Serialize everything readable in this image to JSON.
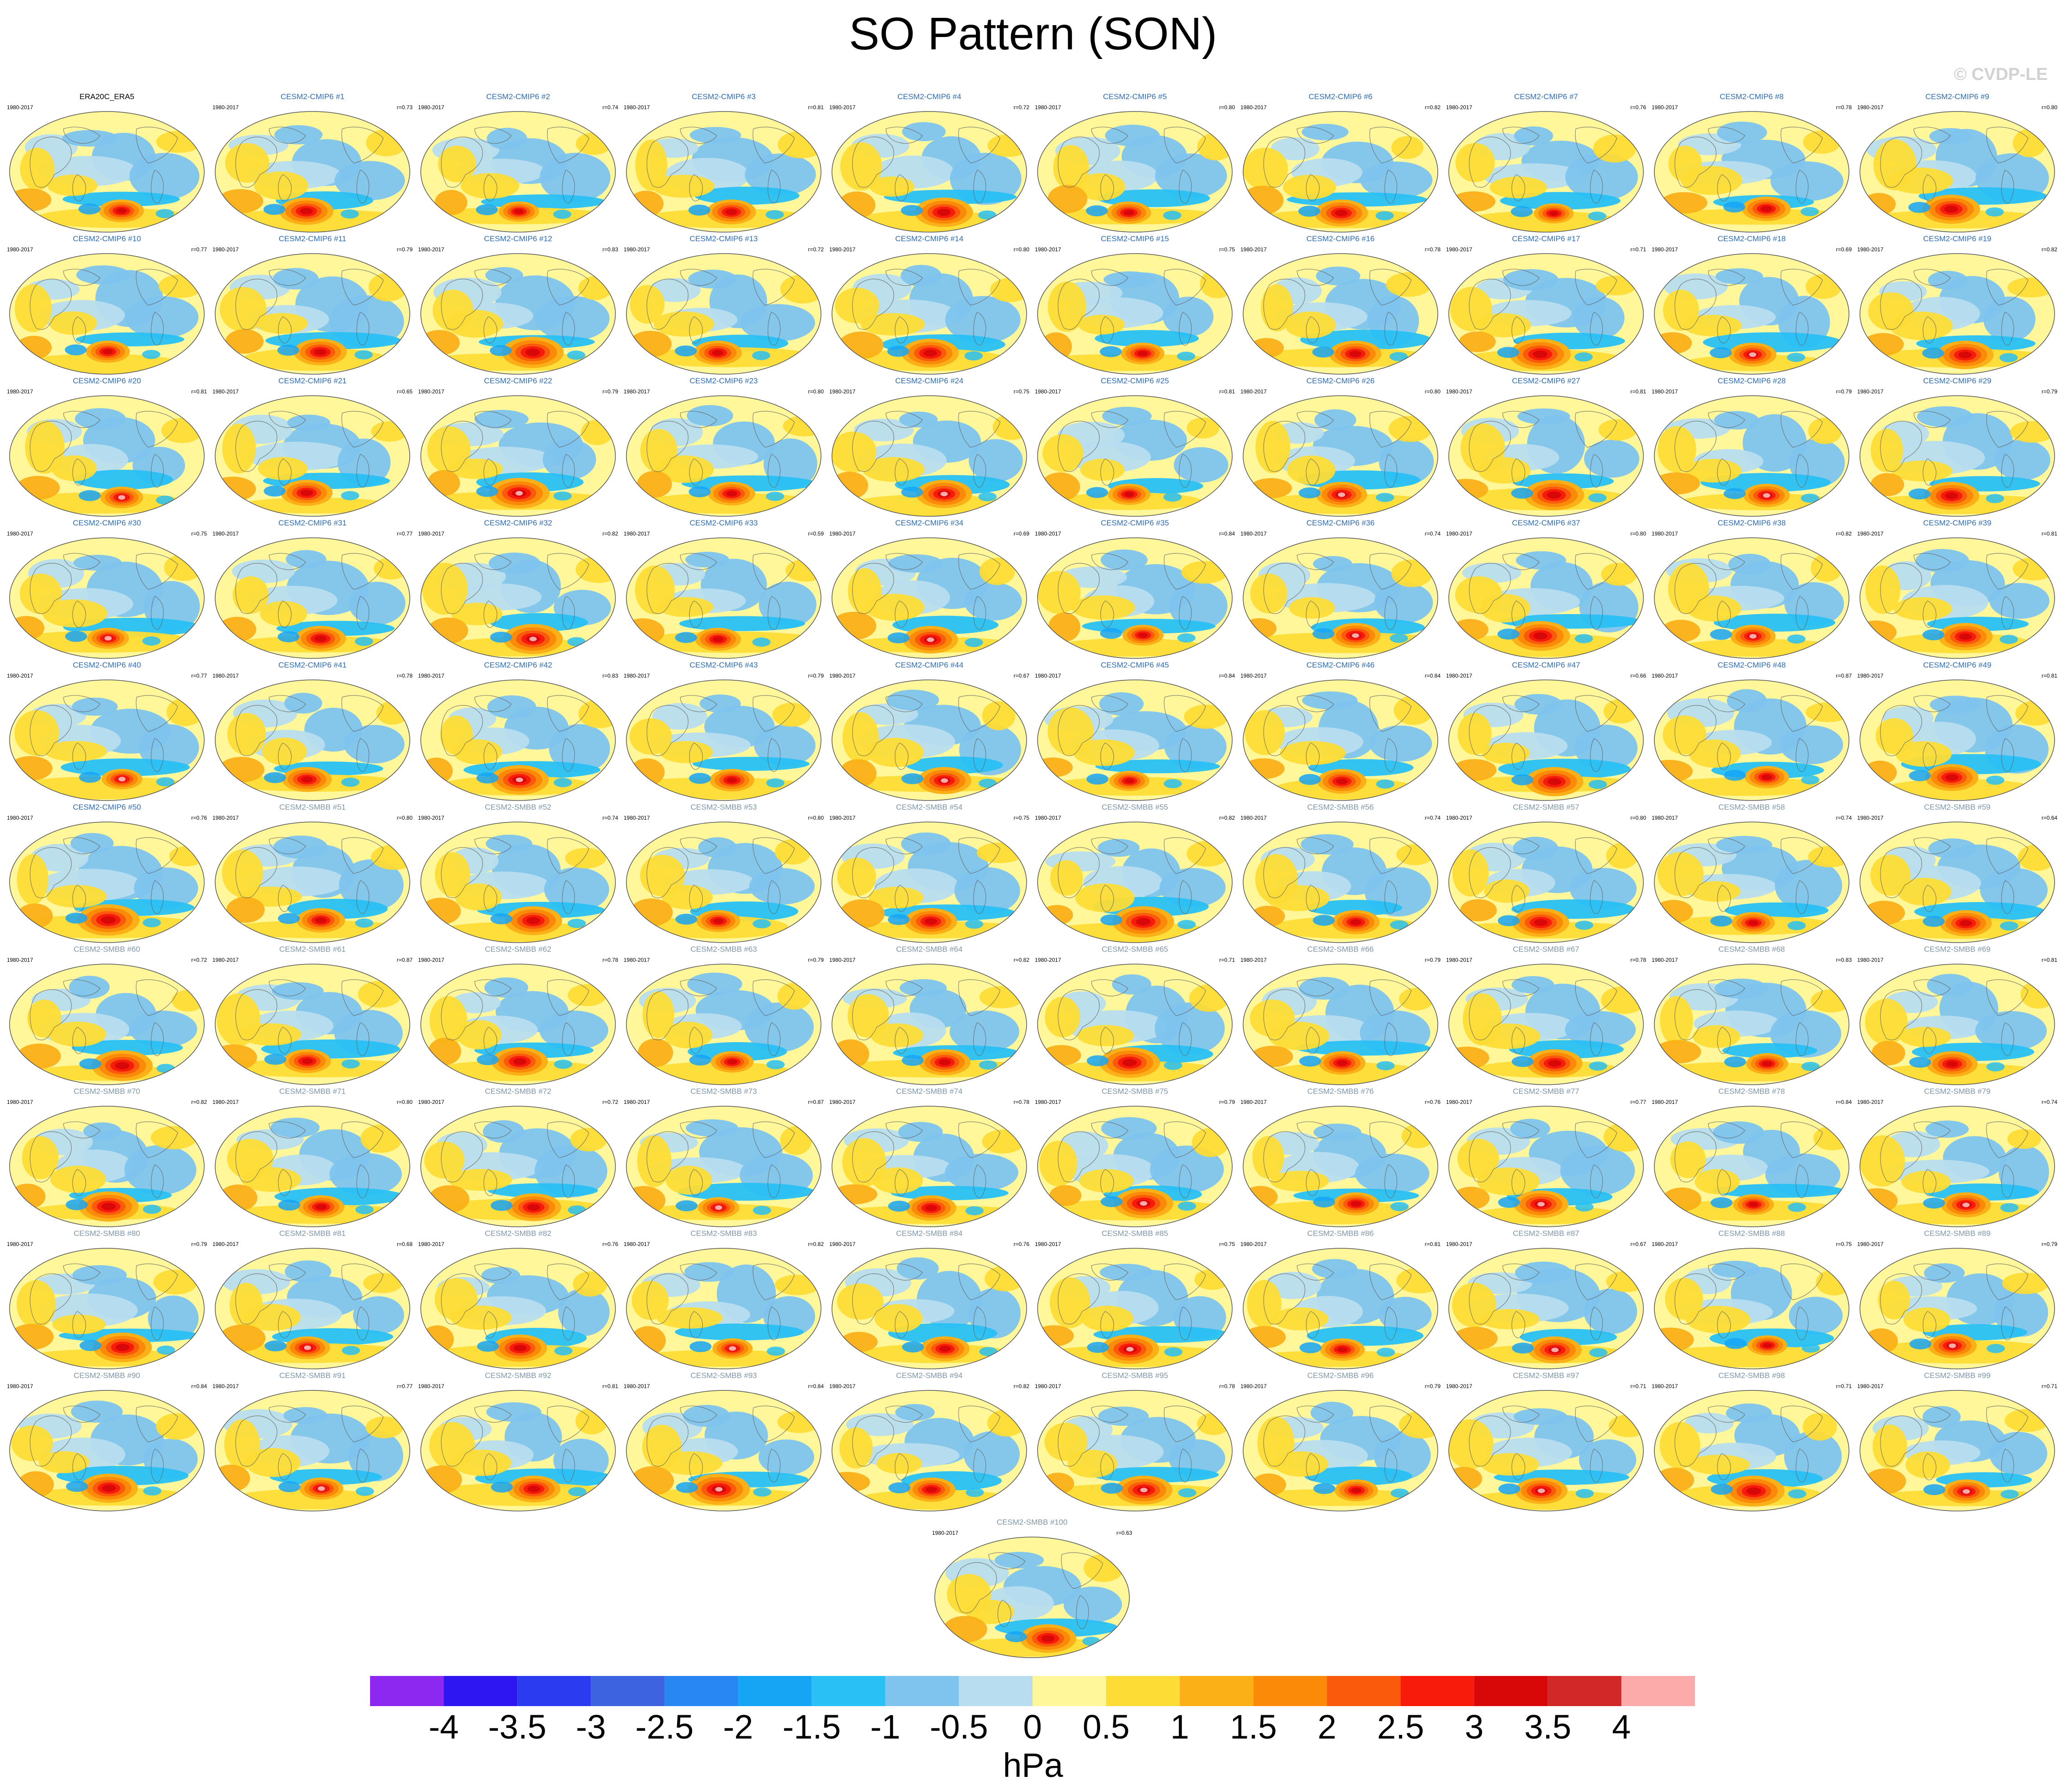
{
  "title": "SO Pattern (SON)",
  "watermark": "© CVDP-LE",
  "units": "hPa",
  "colorbar": {
    "labels": [
      "-4",
      "-3.5",
      "-3",
      "-2.5",
      "-2",
      "-1.5",
      "-1",
      "-0.5",
      "0",
      "0.5",
      "1",
      "1.5",
      "2",
      "2.5",
      "3",
      "3.5",
      "4"
    ],
    "colors": [
      "#8c28f0",
      "#2e16f2",
      "#2b3cf0",
      "#3d63e0",
      "#2887f2",
      "#16a4f5",
      "#28c0f5",
      "#7ec4ee",
      "#b8ddf0",
      "#fff79a",
      "#fddc35",
      "#fbb018",
      "#fa8a08",
      "#fa5a0c",
      "#f81a0a",
      "#d80808",
      "#d22828",
      "#fcaaaa"
    ]
  },
  "chart_data": {
    "type": "heatmap",
    "description_units": "sea level pressure anomaly (hPa)",
    "color_scale": {
      "min": -4,
      "max": 4,
      "step": 0.5,
      "units": "hPa"
    },
    "years": "1980-2017",
    "panels": [
      {
        "title": "ERA20C_ERA5",
        "years": "1980-2017",
        "r": "",
        "source": "obs"
      },
      {
        "title": "CESM2-CMIP6 #1",
        "years": "1980-2017",
        "r": "r=0.73",
        "source": "cmip6"
      },
      {
        "title": "CESM2-CMIP6 #2",
        "years": "1980-2017",
        "r": "r=0.74",
        "source": "cmip6"
      },
      {
        "title": "CESM2-CMIP6 #3",
        "years": "1980-2017",
        "r": "r=0.81",
        "source": "cmip6"
      },
      {
        "title": "CESM2-CMIP6 #4",
        "years": "1980-2017",
        "r": "r=0.72",
        "source": "cmip6"
      },
      {
        "title": "CESM2-CMIP6 #5",
        "years": "1980-2017",
        "r": "r=0.80",
        "source": "cmip6"
      },
      {
        "title": "CESM2-CMIP6 #6",
        "years": "1980-2017",
        "r": "r=0.82",
        "source": "cmip6"
      },
      {
        "title": "CESM2-CMIP6 #7",
        "years": "1980-2017",
        "r": "r=0.76",
        "source": "cmip6"
      },
      {
        "title": "CESM2-CMIP6 #8",
        "years": "1980-2017",
        "r": "r=0.78",
        "source": "cmip6"
      },
      {
        "title": "CESM2-CMIP6 #9",
        "years": "1980-2017",
        "r": "r=0.80",
        "source": "cmip6"
      },
      {
        "title": "CESM2-CMIP6 #10",
        "years": "1980-2017",
        "r": "r=0.77",
        "source": "cmip6"
      },
      {
        "title": "CESM2-CMIP6 #11",
        "years": "1980-2017",
        "r": "r=0.79",
        "source": "cmip6"
      },
      {
        "title": "CESM2-CMIP6 #12",
        "years": "1980-2017",
        "r": "r=0.83",
        "source": "cmip6"
      },
      {
        "title": "CESM2-CMIP6 #13",
        "years": "1980-2017",
        "r": "r=0.72",
        "source": "cmip6"
      },
      {
        "title": "CESM2-CMIP6 #14",
        "years": "1980-2017",
        "r": "r=0.80",
        "source": "cmip6"
      },
      {
        "title": "CESM2-CMIP6 #15",
        "years": "1980-2017",
        "r": "r=0.75",
        "source": "cmip6"
      },
      {
        "title": "CESM2-CMIP6 #16",
        "years": "1980-2017",
        "r": "r=0.78",
        "source": "cmip6"
      },
      {
        "title": "CESM2-CMIP6 #17",
        "years": "1980-2017",
        "r": "r=0.71",
        "source": "cmip6"
      },
      {
        "title": "CESM2-CMIP6 #18",
        "years": "1980-2017",
        "r": "r=0.69",
        "source": "cmip6"
      },
      {
        "title": "CESM2-CMIP6 #19",
        "years": "1980-2017",
        "r": "r=0.82",
        "source": "cmip6"
      },
      {
        "title": "CESM2-CMIP6 #20",
        "years": "1980-2017",
        "r": "r=0.81",
        "source": "cmip6"
      },
      {
        "title": "CESM2-CMIP6 #21",
        "years": "1980-2017",
        "r": "r=0.65",
        "source": "cmip6"
      },
      {
        "title": "CESM2-CMIP6 #22",
        "years": "1980-2017",
        "r": "r=0.79",
        "source": "cmip6"
      },
      {
        "title": "CESM2-CMIP6 #23",
        "years": "1980-2017",
        "r": "r=0.80",
        "source": "cmip6"
      },
      {
        "title": "CESM2-CMIP6 #24",
        "years": "1980-2017",
        "r": "r=0.75",
        "source": "cmip6"
      },
      {
        "title": "CESM2-CMIP6 #25",
        "years": "1980-2017",
        "r": "r=0.81",
        "source": "cmip6"
      },
      {
        "title": "CESM2-CMIP6 #26",
        "years": "1980-2017",
        "r": "r=0.80",
        "source": "cmip6"
      },
      {
        "title": "CESM2-CMIP6 #27",
        "years": "1980-2017",
        "r": "r=0.81",
        "source": "cmip6"
      },
      {
        "title": "CESM2-CMIP6 #28",
        "years": "1980-2017",
        "r": "r=0.79",
        "source": "cmip6"
      },
      {
        "title": "CESM2-CMIP6 #29",
        "years": "1980-2017",
        "r": "r=0.79",
        "source": "cmip6"
      },
      {
        "title": "CESM2-CMIP6 #30",
        "years": "1980-2017",
        "r": "r=0.75",
        "source": "cmip6"
      },
      {
        "title": "CESM2-CMIP6 #31",
        "years": "1980-2017",
        "r": "r=0.77",
        "source": "cmip6"
      },
      {
        "title": "CESM2-CMIP6 #32",
        "years": "1980-2017",
        "r": "r=0.82",
        "source": "cmip6"
      },
      {
        "title": "CESM2-CMIP6 #33",
        "years": "1980-2017",
        "r": "r=0.59",
        "source": "cmip6"
      },
      {
        "title": "CESM2-CMIP6 #34",
        "years": "1980-2017",
        "r": "r=0.69",
        "source": "cmip6"
      },
      {
        "title": "CESM2-CMIP6 #35",
        "years": "1980-2017",
        "r": "r=0.84",
        "source": "cmip6"
      },
      {
        "title": "CESM2-CMIP6 #36",
        "years": "1980-2017",
        "r": "r=0.74",
        "source": "cmip6"
      },
      {
        "title": "CESM2-CMIP6 #37",
        "years": "1980-2017",
        "r": "r=0.80",
        "source": "cmip6"
      },
      {
        "title": "CESM2-CMIP6 #38",
        "years": "1980-2017",
        "r": "r=0.82",
        "source": "cmip6"
      },
      {
        "title": "CESM2-CMIP6 #39",
        "years": "1980-2017",
        "r": "r=0.81",
        "source": "cmip6"
      },
      {
        "title": "CESM2-CMIP6 #40",
        "years": "1980-2017",
        "r": "r=0.77",
        "source": "cmip6"
      },
      {
        "title": "CESM2-CMIP6 #41",
        "years": "1980-2017",
        "r": "r=0.78",
        "source": "cmip6"
      },
      {
        "title": "CESM2-CMIP6 #42",
        "years": "1980-2017",
        "r": "r=0.83",
        "source": "cmip6"
      },
      {
        "title": "CESM2-CMIP6 #43",
        "years": "1980-2017",
        "r": "r=0.79",
        "source": "cmip6"
      },
      {
        "title": "CESM2-CMIP6 #44",
        "years": "1980-2017",
        "r": "r=0.67",
        "source": "cmip6"
      },
      {
        "title": "CESM2-CMIP6 #45",
        "years": "1980-2017",
        "r": "r=0.84",
        "source": "cmip6"
      },
      {
        "title": "CESM2-CMIP6 #46",
        "years": "1980-2017",
        "r": "r=0.84",
        "source": "cmip6"
      },
      {
        "title": "CESM2-CMIP6 #47",
        "years": "1980-2017",
        "r": "r=0.66",
        "source": "cmip6"
      },
      {
        "title": "CESM2-CMIP6 #48",
        "years": "1980-2017",
        "r": "r=0.87",
        "source": "cmip6"
      },
      {
        "title": "CESM2-CMIP6 #49",
        "years": "1980-2017",
        "r": "r=0.81",
        "source": "cmip6"
      },
      {
        "title": "CESM2-CMIP6 #50",
        "years": "1980-2017",
        "r": "r=0.76",
        "source": "cmip6"
      },
      {
        "title": "CESM2-SMBB #51",
        "years": "1980-2017",
        "r": "r=0.80",
        "source": "smbb"
      },
      {
        "title": "CESM2-SMBB #52",
        "years": "1980-2017",
        "r": "r=0.74",
        "source": "smbb"
      },
      {
        "title": "CESM2-SMBB #53",
        "years": "1980-2017",
        "r": "r=0.80",
        "source": "smbb"
      },
      {
        "title": "CESM2-SMBB #54",
        "years": "1980-2017",
        "r": "r=0.75",
        "source": "smbb"
      },
      {
        "title": "CESM2-SMBB #55",
        "years": "1980-2017",
        "r": "r=0.82",
        "source": "smbb"
      },
      {
        "title": "CESM2-SMBB #56",
        "years": "1980-2017",
        "r": "r=0.74",
        "source": "smbb"
      },
      {
        "title": "CESM2-SMBB #57",
        "years": "1980-2017",
        "r": "r=0.80",
        "source": "smbb"
      },
      {
        "title": "CESM2-SMBB #58",
        "years": "1980-2017",
        "r": "r=0.74",
        "source": "smbb"
      },
      {
        "title": "CESM2-SMBB #59",
        "years": "1980-2017",
        "r": "r=0.64",
        "source": "smbb"
      },
      {
        "title": "CESM2-SMBB #60",
        "years": "1980-2017",
        "r": "r=0.72",
        "source": "smbb"
      },
      {
        "title": "CESM2-SMBB #61",
        "years": "1980-2017",
        "r": "r=0.87",
        "source": "smbb"
      },
      {
        "title": "CESM2-SMBB #62",
        "years": "1980-2017",
        "r": "r=0.78",
        "source": "smbb"
      },
      {
        "title": "CESM2-SMBB #63",
        "years": "1980-2017",
        "r": "r=0.79",
        "source": "smbb"
      },
      {
        "title": "CESM2-SMBB #64",
        "years": "1980-2017",
        "r": "r=0.82",
        "source": "smbb"
      },
      {
        "title": "CESM2-SMBB #65",
        "years": "1980-2017",
        "r": "r=0.71",
        "source": "smbb"
      },
      {
        "title": "CESM2-SMBB #66",
        "years": "1980-2017",
        "r": "r=0.79",
        "source": "smbb"
      },
      {
        "title": "CESM2-SMBB #67",
        "years": "1980-2017",
        "r": "r=0.78",
        "source": "smbb"
      },
      {
        "title": "CESM2-SMBB #68",
        "years": "1980-2017",
        "r": "r=0.83",
        "source": "smbb"
      },
      {
        "title": "CESM2-SMBB #69",
        "years": "1980-2017",
        "r": "r=0.81",
        "source": "smbb"
      },
      {
        "title": "CESM2-SMBB #70",
        "years": "1980-2017",
        "r": "r=0.82",
        "source": "smbb"
      },
      {
        "title": "CESM2-SMBB #71",
        "years": "1980-2017",
        "r": "r=0.80",
        "source": "smbb"
      },
      {
        "title": "CESM2-SMBB #72",
        "years": "1980-2017",
        "r": "r=0.72",
        "source": "smbb"
      },
      {
        "title": "CESM2-SMBB #73",
        "years": "1980-2017",
        "r": "r=0.87",
        "source": "smbb"
      },
      {
        "title": "CESM2-SMBB #74",
        "years": "1980-2017",
        "r": "r=0.78",
        "source": "smbb"
      },
      {
        "title": "CESM2-SMBB #75",
        "years": "1980-2017",
        "r": "r=0.79",
        "source": "smbb"
      },
      {
        "title": "CESM2-SMBB #76",
        "years": "1980-2017",
        "r": "r=0.76",
        "source": "smbb"
      },
      {
        "title": "CESM2-SMBB #77",
        "years": "1980-2017",
        "r": "r=0.77",
        "source": "smbb"
      },
      {
        "title": "CESM2-SMBB #78",
        "years": "1980-2017",
        "r": "r=0.84",
        "source": "smbb"
      },
      {
        "title": "CESM2-SMBB #79",
        "years": "1980-2017",
        "r": "r=0.74",
        "source": "smbb"
      },
      {
        "title": "CESM2-SMBB #80",
        "years": "1980-2017",
        "r": "r=0.79",
        "source": "smbb"
      },
      {
        "title": "CESM2-SMBB #81",
        "years": "1980-2017",
        "r": "r=0.68",
        "source": "smbb"
      },
      {
        "title": "CESM2-SMBB #82",
        "years": "1980-2017",
        "r": "r=0.76",
        "source": "smbb"
      },
      {
        "title": "CESM2-SMBB #83",
        "years": "1980-2017",
        "r": "r=0.82",
        "source": "smbb"
      },
      {
        "title": "CESM2-SMBB #84",
        "years": "1980-2017",
        "r": "r=0.76",
        "source": "smbb"
      },
      {
        "title": "CESM2-SMBB #85",
        "years": "1980-2017",
        "r": "r=0.75",
        "source": "smbb"
      },
      {
        "title": "CESM2-SMBB #86",
        "years": "1980-2017",
        "r": "r=0.81",
        "source": "smbb"
      },
      {
        "title": "CESM2-SMBB #87",
        "years": "1980-2017",
        "r": "r=0.67",
        "source": "smbb"
      },
      {
        "title": "CESM2-SMBB #88",
        "years": "1980-2017",
        "r": "r=0.75",
        "source": "smbb"
      },
      {
        "title": "CESM2-SMBB #89",
        "years": "1980-2017",
        "r": "r=0.79",
        "source": "smbb"
      },
      {
        "title": "CESM2-SMBB #90",
        "years": "1980-2017",
        "r": "r=0.84",
        "source": "smbb"
      },
      {
        "title": "CESM2-SMBB #91",
        "years": "1980-2017",
        "r": "r=0.77",
        "source": "smbb"
      },
      {
        "title": "CESM2-SMBB #92",
        "years": "1980-2017",
        "r": "r=0.81",
        "source": "smbb"
      },
      {
        "title": "CESM2-SMBB #93",
        "years": "1980-2017",
        "r": "r=0.84",
        "source": "smbb"
      },
      {
        "title": "CESM2-SMBB #94",
        "years": "1980-2017",
        "r": "r=0.82",
        "source": "smbb"
      },
      {
        "title": "CESM2-SMBB #95",
        "years": "1980-2017",
        "r": "r=0.78",
        "source": "smbb"
      },
      {
        "title": "CESM2-SMBB #96",
        "years": "1980-2017",
        "r": "r=0.79",
        "source": "smbb"
      },
      {
        "title": "CESM2-SMBB #97",
        "years": "1980-2017",
        "r": "r=0.71",
        "source": "smbb"
      },
      {
        "title": "CESM2-SMBB #98",
        "years": "1980-2017",
        "r": "r=0.71",
        "source": "smbb"
      },
      {
        "title": "CESM2-SMBB #99",
        "years": "1980-2017",
        "r": "r=0.71",
        "source": "smbb"
      },
      {
        "title": "CESM2-SMBB #100",
        "years": "1980-2017",
        "r": "r=0.63",
        "source": "smbb"
      }
    ]
  }
}
